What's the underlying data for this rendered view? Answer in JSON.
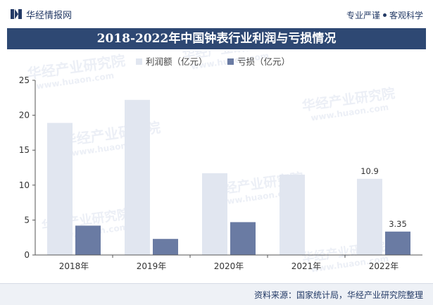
{
  "header": {
    "brand_name": "华经情报网",
    "slogan_left": "专业严谨",
    "slogan_right": "客观科学"
  },
  "title": "2018-2022年中国钟表行业利润与亏损情况",
  "footer": {
    "source": "资料来源：国家统计局，华经产业研究院整理"
  },
  "watermark": {
    "text": "华经产业研究院",
    "url": "www.huaon.com"
  },
  "colors": {
    "profit": "#e1e6f0",
    "loss": "#6a7ba3",
    "title_bg": "#2e4873",
    "brand": "#233a66"
  },
  "chart_data": {
    "type": "bar",
    "categories": [
      "2018年",
      "2019年",
      "2020年",
      "2021年",
      "2022年"
    ],
    "series": [
      {
        "name": "利润额（亿元）",
        "values": [
          18.9,
          22.2,
          11.7,
          11.5,
          10.9
        ],
        "labels": [
          null,
          null,
          null,
          null,
          "10.9"
        ]
      },
      {
        "name": "亏损（亿元）",
        "values": [
          4.2,
          2.3,
          4.7,
          null,
          3.35
        ],
        "labels": [
          null,
          null,
          null,
          null,
          "3.35"
        ]
      }
    ],
    "ylim": [
      0,
      25
    ],
    "yticks": [
      0,
      5,
      10,
      15,
      20,
      25
    ],
    "legend_position": "top-center",
    "grid": false
  }
}
